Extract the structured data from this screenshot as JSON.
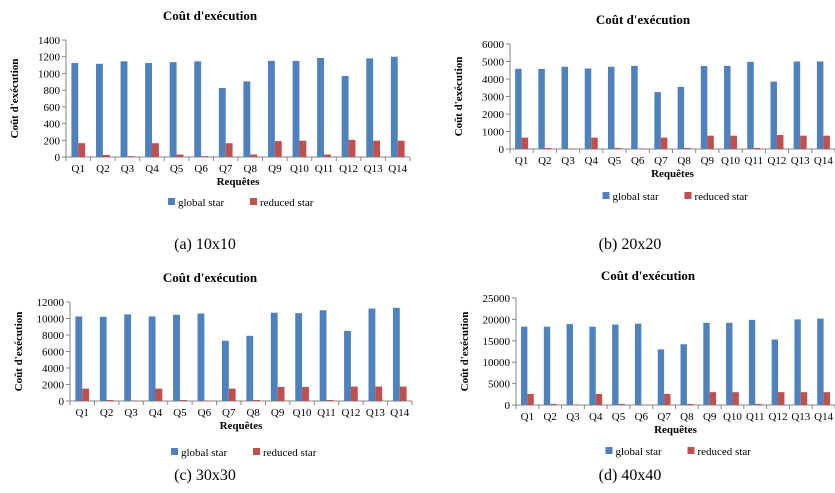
{
  "chart_data": [
    {
      "type": "bar",
      "title": "Coût d'exécution",
      "xlabel": "Requêtes",
      "ylabel": "Coût d'exécution",
      "ylim": [
        0,
        1400
      ],
      "yticks": [
        0,
        200,
        400,
        600,
        800,
        1000,
        1200,
        1400
      ],
      "categories": [
        "Q1",
        "Q2",
        "Q3",
        "Q4",
        "Q5",
        "Q6",
        "Q7",
        "Q8",
        "Q9",
        "Q10",
        "Q11",
        "Q12",
        "Q13",
        "Q14"
      ],
      "series": [
        {
          "name": "global star",
          "color": "#4f81bd",
          "values": [
            1125,
            1115,
            1145,
            1125,
            1135,
            1145,
            825,
            905,
            1150,
            1150,
            1185,
            970,
            1180,
            1200
          ]
        },
        {
          "name": "reduced star",
          "color": "#c0504d",
          "values": [
            165,
            25,
            10,
            165,
            30,
            10,
            165,
            30,
            190,
            195,
            30,
            205,
            195,
            195
          ]
        }
      ],
      "legend": "bottom",
      "caption": "(a) 10x10"
    },
    {
      "type": "bar",
      "title": "Coût d'exécution",
      "xlabel": "Requêtes",
      "ylabel": "Coût d'exécution",
      "ylim": [
        0,
        6000
      ],
      "yticks": [
        0,
        1000,
        2000,
        3000,
        4000,
        5000,
        6000
      ],
      "categories": [
        "Q1",
        "Q2",
        "Q3",
        "Q4",
        "Q5",
        "Q6",
        "Q7",
        "Q8",
        "Q9",
        "Q10",
        "Q11",
        "Q12",
        "Q13",
        "Q14"
      ],
      "series": [
        {
          "name": "global star",
          "color": "#4f81bd",
          "values": [
            4580,
            4580,
            4700,
            4600,
            4700,
            4750,
            3250,
            3550,
            4750,
            4750,
            4980,
            3850,
            5000,
            5000
          ]
        },
        {
          "name": "reduced star",
          "color": "#c0504d",
          "values": [
            650,
            60,
            30,
            650,
            60,
            30,
            650,
            60,
            760,
            760,
            60,
            800,
            760,
            760
          ]
        }
      ],
      "legend": "bottom",
      "caption": "(b) 20x20"
    },
    {
      "type": "bar",
      "title": "Coût d'exécution",
      "xlabel": "Requêtes",
      "ylabel": "Coût d'exécution",
      "ylim": [
        0,
        12000
      ],
      "yticks": [
        0,
        2000,
        4000,
        6000,
        8000,
        10000,
        12000
      ],
      "categories": [
        "Q1",
        "Q2",
        "Q3",
        "Q4",
        "Q5",
        "Q6",
        "Q7",
        "Q8",
        "Q9",
        "Q10",
        "Q11",
        "Q12",
        "Q13",
        "Q14"
      ],
      "series": [
        {
          "name": "global star",
          "color": "#4f81bd",
          "values": [
            10250,
            10200,
            10500,
            10250,
            10450,
            10600,
            7300,
            7900,
            10700,
            10650,
            11000,
            8500,
            11200,
            11300
          ]
        },
        {
          "name": "reduced star",
          "color": "#c0504d",
          "values": [
            1500,
            120,
            60,
            1500,
            120,
            60,
            1500,
            120,
            1700,
            1700,
            120,
            1750,
            1750,
            1750
          ]
        }
      ],
      "legend": "bottom",
      "caption": "(c) 30x30"
    },
    {
      "type": "bar",
      "title": "Coût d'exécution",
      "xlabel": "Requêtes",
      "ylabel": "Coût d'exécution",
      "ylim": [
        0,
        25000
      ],
      "yticks": [
        0,
        5000,
        10000,
        15000,
        20000,
        25000
      ],
      "categories": [
        "Q1",
        "Q2",
        "Q3",
        "Q4",
        "Q5",
        "Q6",
        "Q7",
        "Q8",
        "Q9",
        "Q10",
        "Q11",
        "Q12",
        "Q13",
        "Q14"
      ],
      "series": [
        {
          "name": "global star",
          "color": "#4f81bd",
          "values": [
            18300,
            18300,
            18900,
            18300,
            18800,
            19000,
            13000,
            14200,
            19200,
            19200,
            19900,
            15300,
            20000,
            20200
          ]
        },
        {
          "name": "reduced star",
          "color": "#c0504d",
          "values": [
            2600,
            250,
            100,
            2600,
            250,
            100,
            2600,
            250,
            3000,
            3000,
            250,
            3000,
            3000,
            3000
          ]
        }
      ],
      "legend": "bottom",
      "caption": "(d) 40x40"
    }
  ]
}
